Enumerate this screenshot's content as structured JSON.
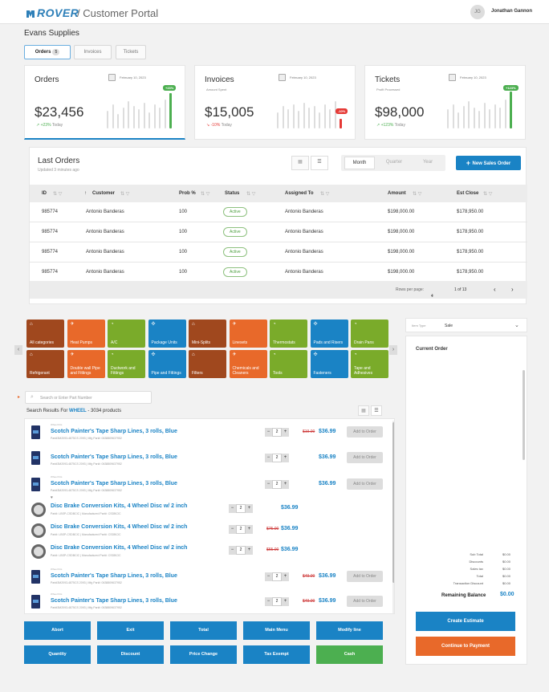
{
  "header": {
    "brand": "ROVER",
    "portal_title": "/ Customer Portal",
    "user_initials": "JG",
    "user_name": "Jonathan Gannon"
  },
  "company": "Evans Supplies",
  "tabs": [
    {
      "label": "Orders",
      "count": "5"
    },
    {
      "label": "Invoices"
    },
    {
      "label": "Tickets"
    }
  ],
  "cards": [
    {
      "title": "Orders",
      "subtitle": "",
      "date": "February 10, 2023",
      "value": "$23,456",
      "delta": "+23%",
      "delta_suffix": "Today",
      "badge": "+23%",
      "badge_color": "#4caf50",
      "trend": "up"
    },
    {
      "title": "Invoices",
      "subtitle": "Amount Spent",
      "date": "February 10, 2023",
      "value": "$15,005",
      "delta": "-10%",
      "delta_suffix": "Today",
      "badge": "-10%",
      "badge_color": "#e53935",
      "trend": "down"
    },
    {
      "title": "Tickets",
      "subtitle": "Profit Processed",
      "date": "February 10, 2023",
      "value": "$98,000",
      "delta": "+123%",
      "delta_suffix": "Today",
      "badge": "+123%",
      "badge_color": "#4caf50",
      "trend": "up"
    }
  ],
  "last_orders": {
    "title": "Last Orders",
    "updated": "Updated 3 minutes ago",
    "periods": [
      "Month",
      "Quarter",
      "Year"
    ],
    "new_button": "New Sales Order",
    "columns": [
      "ID",
      "Customer",
      "Prob %",
      "Status",
      "Assigned To",
      "Amount",
      "Est Close"
    ],
    "rows": [
      [
        "985774",
        "Antonio Banderas",
        "100",
        "Active",
        "Antonio Banderas",
        "$198,000.00",
        "$178,950.00"
      ],
      [
        "985774",
        "Antonio Banderas",
        "100",
        "Active",
        "Antonio Banderas",
        "$198,000.00",
        "$178,950.00"
      ],
      [
        "985774",
        "Antonio Banderas",
        "100",
        "Active",
        "Antonio Banderas",
        "$198,000.00",
        "$178,950.00"
      ],
      [
        "985774",
        "Antonio Banderas",
        "100",
        "Active",
        "Antonio Banderas",
        "$198,000.00",
        "$178,950.00"
      ]
    ],
    "rows_per_page_label": "Rows per page:",
    "rows_per_page": "4",
    "page_info": "1 of 13"
  },
  "categories": [
    {
      "label": "All categories",
      "color": "#a0481e",
      "icon": "⌂"
    },
    {
      "label": "Heat Pumps",
      "color": "#e8692a",
      "icon": "✈"
    },
    {
      "label": "A/C",
      "color": "#7aab2a",
      "icon": "◔"
    },
    {
      "label": "Package Units",
      "color": "#1a83c5",
      "icon": "✣"
    },
    {
      "label": "Mini-Splits",
      "color": "#a0481e",
      "icon": "⌂"
    },
    {
      "label": "Linesets",
      "color": "#e8692a",
      "icon": "✈"
    },
    {
      "label": "Thermostats",
      "color": "#7aab2a",
      "icon": "◔"
    },
    {
      "label": "Pads and Risers",
      "color": "#1a83c5",
      "icon": "✣"
    },
    {
      "label": "Drain Pans",
      "color": "#7aab2a",
      "icon": "◔"
    },
    {
      "label": "Refrigerant",
      "color": "#a0481e",
      "icon": "⌂"
    },
    {
      "label": "Double wall Pipe and Fittings",
      "color": "#e8692a",
      "icon": "✈"
    },
    {
      "label": "Ductwork and Fittings",
      "color": "#7aab2a",
      "icon": "◔"
    },
    {
      "label": "Pipe and Fittings",
      "color": "#1a83c5",
      "icon": "✣"
    },
    {
      "label": "Filters",
      "color": "#a0481e",
      "icon": "⌂"
    },
    {
      "label": "Chemicals and Cleaners",
      "color": "#e8692a",
      "icon": "✈"
    },
    {
      "label": "Tools",
      "color": "#7aab2a",
      "icon": "◔"
    },
    {
      "label": "Fasteners",
      "color": "#1a83c5",
      "icon": "✣"
    },
    {
      "label": "Tape and Adhesives",
      "color": "#7aab2a",
      "icon": "◔"
    }
  ],
  "search": {
    "placeholder": "Search or Enter Part Number",
    "results_prefix": "Search Results For",
    "query": "WHEEL",
    "results_suffix": "- 3034 products"
  },
  "products": [
    {
      "kind": "tape",
      "brand": "Wheel Kits",
      "name": "Scotch Painter's Tape Sharp Lines,  3 rolls, Blue",
      "part": "Part#3M2093-4875CS 2093  |  Mfg Part#: 0638809637952",
      "qty": "2",
      "old": "$19.00",
      "price": "$36.99",
      "add": "Add to Order"
    },
    {
      "kind": "tape",
      "brand": "",
      "name": "Scotch Painter's Tape Sharp Lines,  3 rolls, Blue",
      "part": "Part#3M2093-4875CS 2093  |  Mfg Part#: 0638809637952",
      "qty": "2",
      "old": "",
      "price": "$36.99",
      "add": "Add to Order"
    },
    {
      "kind": "tape",
      "brand": "Wheel Kits",
      "name": "Scotch Painter's Tape Sharp Lines,  3 rolls, Blue",
      "part": "Part#3M2093-4875CS 2093  |  Mfg Part#: 0638809637952",
      "qty": "2",
      "old": "",
      "price": "$36.99",
      "add": "Add to Order"
    },
    {
      "kind": "disc",
      "brand": "",
      "name": "Disc Brake Conversion Kits, 4 Wheel Disc w/ 2 inch",
      "part": "Part#: LBSP-CSDBCIC  |  Manufactured Part#: CSDBCIC",
      "qty": "2",
      "old": "",
      "price": "$36.99",
      "add": ""
    },
    {
      "kind": "disc",
      "brand": "",
      "name": "Disc Brake Conversion Kits, 4 Wheel Disc w/ 2 inch",
      "part": "Part#: LBSP-CSDBCIC  |  Manufactured Part#: CSDBCIC",
      "qty": "2",
      "old": "$75.00",
      "price": "$36.99",
      "add": ""
    },
    {
      "kind": "disc",
      "brand": "",
      "name": "Disc Brake Conversion Kits, 4 Wheel Disc w/ 2 inch",
      "part": "Part#: LBSP-CSDBCIC  |  Manufactured Part#: CSDBCIC",
      "qty": "2",
      "old": "$65.00",
      "price": "$36.99",
      "add": ""
    },
    {
      "kind": "tape",
      "brand": "Wheel Kits",
      "name": "Scotch Painter's Tape Sharp Lines,  3 rolls, Blue",
      "part": "Part#3M2093-4875CS 2093  |  Mfg Part#: 0638809637952",
      "qty": "2",
      "old": "$49.00",
      "price": "$36.99",
      "add": "Add to Order"
    },
    {
      "kind": "tape",
      "brand": "Wheel Kits",
      "name": "Scotch Painter's Tape Sharp Lines,  3 rolls, Blue",
      "part": "Part#3M2093-4875CS 2093  |  Mfg Part#: 0638809637952",
      "qty": "2",
      "old": "$49.00",
      "price": "$36.99",
      "add": "Add to Order"
    }
  ],
  "action_buttons": [
    "Abort",
    "Exit",
    "Total",
    "Main Menu",
    "Modify line",
    "Quantity",
    "Discount",
    "Price Change",
    "Tax Exempt",
    "Cash"
  ],
  "side": {
    "item_type_label": "Item Type",
    "item_type_value": "Sale",
    "current_order": "Current Order",
    "summary": [
      {
        "label": "Sub Total",
        "value": "$0.00"
      },
      {
        "label": "Discounts",
        "value": "$0.00"
      },
      {
        "label": "Sales tax",
        "value": "$0.00"
      },
      {
        "label": "Total",
        "value": "$0.00"
      },
      {
        "label": "Transaction Discount",
        "value": "$0.00"
      }
    ],
    "remaining_label": "Remaining Balance",
    "remaining_value": "$0.00",
    "create_estimate": "Create Estimate",
    "continue_payment": "Continue to Payment"
  },
  "colors": {
    "accent": "#1a83c5",
    "cash": "#4caf50",
    "orange": "#e8692a"
  }
}
